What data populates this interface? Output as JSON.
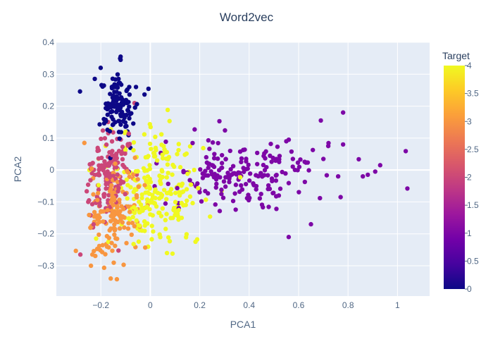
{
  "chart_data": {
    "type": "scatter",
    "title": "Word2vec",
    "xlabel": "PCA1",
    "ylabel": "PCA2",
    "xlim": [
      -0.38,
      1.13
    ],
    "ylim": [
      -0.395,
      0.4
    ],
    "x_ticks": [
      -0.2,
      0,
      0.2,
      0.4,
      0.6,
      0.8,
      1
    ],
    "x_tick_labels": [
      "−0.2",
      "0",
      "0.2",
      "0.4",
      "0.6",
      "0.8",
      "1"
    ],
    "y_ticks": [
      -0.3,
      -0.2,
      -0.1,
      0,
      0.1,
      0.2,
      0.3,
      0.4
    ],
    "y_tick_labels": [
      "−0.3",
      "−0.2",
      "−0.1",
      "0",
      "0.1",
      "0.2",
      "0.3",
      "0.4"
    ],
    "grid": true,
    "colorbar": {
      "title": "Target",
      "range": [
        0,
        4
      ],
      "ticks": [
        0,
        0.5,
        1,
        1.5,
        2,
        2.5,
        3,
        3.5,
        4
      ],
      "tick_labels": [
        "0",
        "0.5",
        "1",
        "1.5",
        "2",
        "2.5",
        "3",
        "3.5",
        "4"
      ],
      "colorscale": [
        "#0d0887",
        "#46039f",
        "#7201a8",
        "#9c179e",
        "#bd3786",
        "#d8576b",
        "#ed7953",
        "#fb9f3a",
        "#fdca26",
        "#f0f921"
      ]
    },
    "plot_bg": "#e5ecf6",
    "clusters": [
      {
        "target": 0,
        "n": 130,
        "cx": -0.13,
        "cy": 0.205,
        "sx": 0.035,
        "sy": 0.05,
        "rot": 0.2,
        "seed": 11
      },
      {
        "target": 1,
        "n": 190,
        "cx": 0.38,
        "cy": -0.01,
        "sx": 0.16,
        "sy": 0.055,
        "rot": 0.05,
        "seed": 23
      },
      {
        "target": 2,
        "n": 150,
        "cx": -0.17,
        "cy": -0.02,
        "sx": 0.04,
        "sy": 0.07,
        "rot": -0.3,
        "seed": 37
      },
      {
        "target": 3,
        "n": 150,
        "cx": -0.15,
        "cy": -0.13,
        "sx": 0.05,
        "sy": 0.075,
        "rot": -0.2,
        "seed": 41
      },
      {
        "target": 4,
        "n": 230,
        "cx": 0.03,
        "cy": -0.06,
        "sx": 0.085,
        "sy": 0.09,
        "rot": 0.3,
        "seed": 53
      }
    ],
    "outliers": [
      {
        "x": 1.04,
        "y": -0.058,
        "target": 1
      },
      {
        "x": 0.93,
        "y": 0.015,
        "target": 1
      },
      {
        "x": 0.91,
        "y": -0.005,
        "target": 1
      },
      {
        "x": 0.88,
        "y": -0.015,
        "target": 1
      },
      {
        "x": 0.86,
        "y": -0.02,
        "target": 1
      },
      {
        "x": 0.78,
        "y": 0.18,
        "target": 1
      },
      {
        "x": 0.78,
        "y": 0.08,
        "target": 1
      },
      {
        "x": 0.77,
        "y": -0.085,
        "target": 1
      },
      {
        "x": 0.76,
        "y": -0.02,
        "target": 1
      },
      {
        "x": 0.69,
        "y": 0.155,
        "target": 1
      },
      {
        "x": 0.72,
        "y": 0.075,
        "target": 1
      },
      {
        "x": 0.65,
        "y": -0.17,
        "target": 1
      },
      {
        "x": 0.56,
        "y": -0.21,
        "target": 1
      },
      {
        "x": -0.12,
        "y": 0.355,
        "target": 0
      },
      {
        "x": -0.12,
        "y": 0.345,
        "target": 0
      },
      {
        "x": 0.09,
        "y": -0.262,
        "target": 4
      },
      {
        "x": -0.16,
        "y": -0.34,
        "target": 3
      },
      {
        "x": -0.24,
        "y": -0.3,
        "target": 3
      }
    ]
  }
}
